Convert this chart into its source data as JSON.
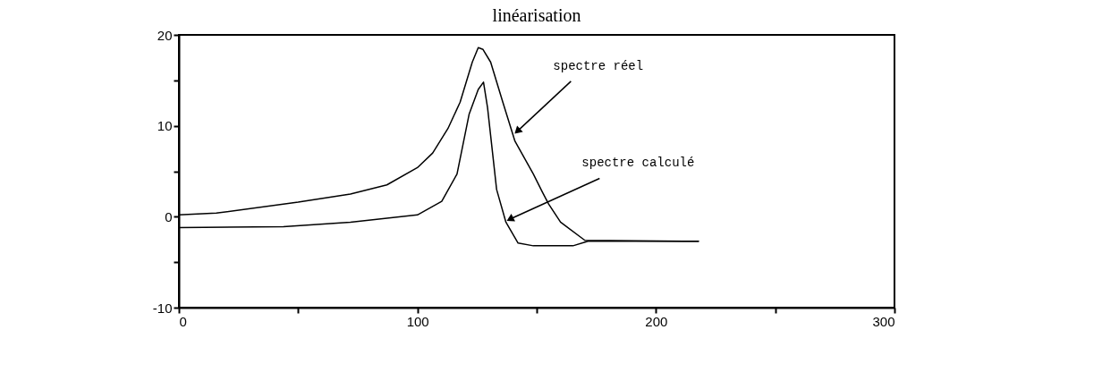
{
  "chart_data": {
    "type": "line",
    "title": "linéarisation",
    "xlim": [
      0,
      300
    ],
    "xticks": [
      0,
      {
        "value": 50,
        "label": null
      },
      100,
      {
        "value": 150,
        "label": null
      },
      200,
      {
        "value": 250,
        "label": null
      },
      300
    ],
    "ylim": [
      -10,
      20
    ],
    "yticks": [
      -10,
      {
        "value": -5,
        "label": null
      },
      0,
      {
        "value": 5,
        "label": null
      },
      10,
      {
        "value": 15,
        "label": null
      },
      20
    ],
    "grid": false,
    "marker": "none",
    "line_style": "solid",
    "series": [
      {
        "color": "#000000",
        "x": [
          0,
          15.7,
          50,
          71.9,
          87.2,
          100,
          106.4,
          112.8,
          117.9,
          123,
          125.5,
          127.5,
          130.7,
          135.8,
          140.9,
          148.6,
          152.4,
          155,
          160,
          170.2,
          218
        ],
        "values": [
          0.2,
          0.4,
          1.6,
          2.5,
          3.5,
          5.4,
          7.0,
          9.7,
          12.6,
          17.0,
          18.6,
          18.4,
          17.0,
          12.6,
          8.3,
          4.7,
          2.7,
          1.4,
          -0.6,
          -2.6,
          -2.7
        ]
      },
      {
        "color": "#000000",
        "x": [
          0,
          43.8,
          71.9,
          100,
          110.2,
          116.6,
          121.7,
          125.5,
          127.7,
          129.4,
          133.2,
          137.1,
          142.2,
          148.6,
          165.2,
          171.5,
          218
        ],
        "values": [
          -1.2,
          -1.1,
          -0.6,
          0.2,
          1.7,
          4.7,
          11.3,
          14.0,
          14.8,
          12.0,
          3.0,
          -0.6,
          -2.9,
          -3.2,
          -3.2,
          -2.7,
          -2.7
        ]
      }
    ],
    "annotations": [
      {
        "text": "spectre réel",
        "x": 140,
        "y": 9
      },
      {
        "text": "spectre calculé",
        "x": 137,
        "y": -0.7
      }
    ]
  }
}
